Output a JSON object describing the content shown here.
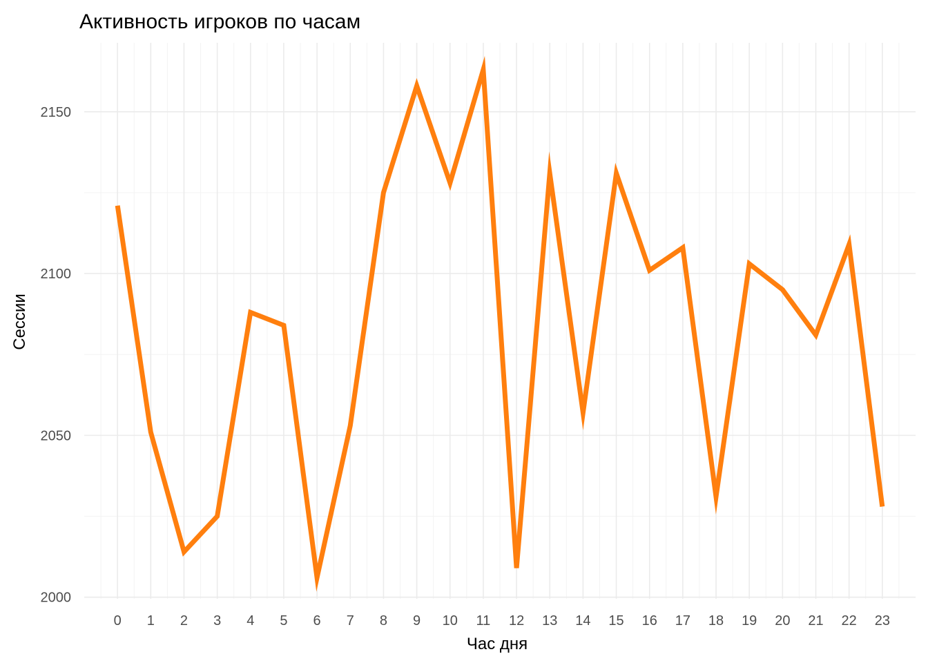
{
  "chart_data": {
    "type": "line",
    "title": "Активность игроков по часам",
    "xlabel": "Час дня",
    "ylabel": "Сессии",
    "x": [
      0,
      1,
      2,
      3,
      4,
      5,
      6,
      7,
      8,
      9,
      10,
      11,
      12,
      13,
      14,
      15,
      16,
      17,
      18,
      19,
      20,
      21,
      22,
      23
    ],
    "x_tick_labels": [
      "0",
      "1",
      "2",
      "3",
      "4",
      "5",
      "6",
      "7",
      "8",
      "9",
      "10",
      "11",
      "12",
      "13",
      "14",
      "15",
      "16",
      "17",
      "18",
      "19",
      "20",
      "21",
      "22",
      "23"
    ],
    "y_ticks": [
      2000,
      2050,
      2100,
      2150
    ],
    "y_tick_labels": [
      "2000",
      "2050",
      "2100",
      "2150"
    ],
    "series": [
      {
        "values": [
          2121,
          2051,
          2014,
          2025,
          2088,
          2084,
          2006,
          2053,
          2125,
          2158,
          2128,
          2163,
          2009,
          2131,
          2057,
          2131,
          2101,
          2108,
          2031,
          2103,
          2095,
          2081,
          2109,
          2028
        ],
        "color": "#ff7f0e"
      }
    ],
    "xlim": [
      -1,
      24
    ],
    "ylim": [
      2000,
      2170
    ],
    "grid": true,
    "legend": "none"
  }
}
